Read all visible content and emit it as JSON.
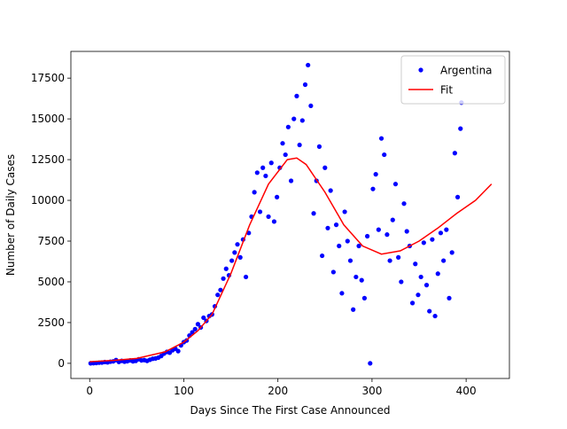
{
  "chart_data": {
    "type": "scatter",
    "x_label": "Days Since The First Case Announced",
    "y_label": "Number of Daily Cases",
    "xlim": [
      -20,
      446
    ],
    "ylim": [
      -930,
      19140
    ],
    "xticks": [
      0,
      100,
      200,
      300,
      400
    ],
    "yticks": [
      0,
      2500,
      5000,
      7500,
      10000,
      12500,
      15000,
      17500
    ],
    "legend": "upper right",
    "series": [
      {
        "name": "Argentina",
        "color": "#0000ff",
        "mode": "markers",
        "x": [
          1,
          4,
          7,
          10,
          13,
          16,
          19,
          22,
          25,
          28,
          31,
          34,
          37,
          40,
          43,
          46,
          49,
          52,
          55,
          58,
          61,
          64,
          67,
          70,
          73,
          76,
          79,
          82,
          85,
          88,
          91,
          94,
          97,
          100,
          103,
          106,
          109,
          112,
          115,
          118,
          121,
          124,
          127,
          130,
          133,
          136,
          139,
          142,
          145,
          148,
          151,
          154,
          157,
          160,
          163,
          166,
          169,
          172,
          175,
          178,
          181,
          184,
          187,
          190,
          193,
          196,
          199,
          202,
          205,
          208,
          211,
          214,
          217,
          220,
          223,
          226,
          229,
          232,
          235,
          238,
          241,
          244,
          247,
          250,
          253,
          256,
          259,
          262,
          265,
          268,
          271,
          274,
          277,
          280,
          283,
          286,
          289,
          292,
          295,
          298,
          301,
          304,
          307,
          310,
          313,
          316,
          319,
          322,
          325,
          328,
          331,
          334,
          337,
          340,
          343,
          346,
          349,
          352,
          355,
          358,
          361,
          364,
          367,
          370,
          373,
          376,
          379,
          382,
          385,
          388,
          391,
          394,
          395
        ],
        "values": [
          0,
          10,
          20,
          40,
          50,
          80,
          60,
          100,
          120,
          200,
          90,
          150,
          100,
          130,
          180,
          120,
          150,
          250,
          180,
          200,
          150,
          220,
          280,
          300,
          350,
          450,
          600,
          700,
          650,
          800,
          900,
          750,
          1100,
          1300,
          1400,
          1700,
          1900,
          2100,
          2400,
          2200,
          2800,
          2600,
          2900,
          3000,
          3500,
          4200,
          4500,
          5200,
          5800,
          5400,
          6300,
          6800,
          7300,
          6500,
          7600,
          5300,
          8000,
          9000,
          10500,
          11700,
          9300,
          12000,
          11500,
          9000,
          12300,
          8700,
          10200,
          12000,
          13500,
          12800,
          14500,
          11200,
          15000,
          16400,
          13400,
          14900,
          17100,
          18300,
          15800,
          9200,
          11200,
          13300,
          6600,
          12000,
          8300,
          10600,
          5600,
          8500,
          7200,
          4300,
          9300,
          7500,
          6300,
          3300,
          5300,
          7200,
          5100,
          4000,
          7800,
          0,
          10700,
          11600,
          8200,
          13800,
          12800,
          7900,
          6300,
          8800,
          11000,
          6500,
          5000,
          9800,
          8100,
          7200,
          3700,
          6100,
          4200,
          5300,
          7400,
          4800,
          3200,
          7600,
          2900,
          5500,
          8000,
          6300,
          8200,
          4000,
          6800,
          12900,
          10200,
          14400,
          16000
        ]
      },
      {
        "name": "Fit",
        "color": "#ff0000",
        "mode": "lines",
        "x": [
          0,
          25,
          50,
          80,
          100,
          115,
          130,
          150,
          170,
          190,
          210,
          220,
          230,
          250,
          270,
          290,
          310,
          330,
          350,
          370,
          390,
          410,
          427
        ],
        "values": [
          100,
          180,
          300,
          700,
          1300,
          2000,
          3000,
          5500,
          8500,
          11000,
          12500,
          12600,
          12200,
          10500,
          8500,
          7200,
          6700,
          6900,
          7500,
          8300,
          9200,
          10000,
          11000
        ]
      }
    ]
  }
}
